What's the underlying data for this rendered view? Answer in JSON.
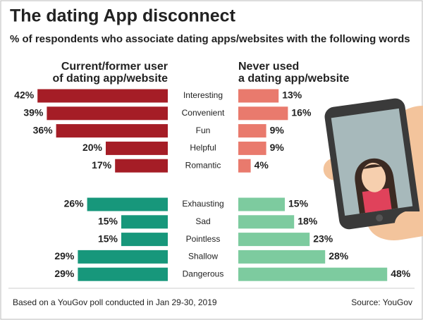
{
  "chart_data": {
    "type": "butterfly",
    "title": "The dating App disconnect",
    "subtitle": "% of respondents who associate dating apps/websites with the following words",
    "series_names": [
      "Current/former user\nof dating app/website",
      "Never used\na dating app/website"
    ],
    "groups": [
      {
        "categories": [
          "Interesting",
          "Convenient",
          "Fun",
          "Helpful",
          "Romantic"
        ],
        "series": [
          {
            "color": "#a51d26",
            "values": [
              42,
              39,
              36,
              20,
              17
            ],
            "value_labels": [
              "42%",
              "39%",
              "36%",
              "20%",
              "17%"
            ]
          },
          {
            "color": "#e97a6d",
            "values": [
              13,
              16,
              9,
              9,
              4
            ],
            "value_labels": [
              "13%",
              "16%",
              "9%",
              "9%",
              "4%"
            ]
          }
        ]
      },
      {
        "categories": [
          "Exhausting",
          "Sad",
          "Pointless",
          "Shallow",
          "Dangerous"
        ],
        "series": [
          {
            "color": "#17977b",
            "values": [
              26,
              15,
              15,
              29,
              29
            ],
            "value_labels": [
              "26%",
              "15%",
              "15%",
              "29%",
              "29%"
            ]
          },
          {
            "color": "#7dcb9f",
            "values": [
              15,
              18,
              23,
              28,
              48
            ],
            "value_labels": [
              "15%",
              "18%",
              "23%",
              "28%",
              "48%"
            ]
          }
        ]
      }
    ],
    "note": "Based on a YouGov poll conducted in Jan 29-30, 2019",
    "source": "Source: YouGov"
  }
}
